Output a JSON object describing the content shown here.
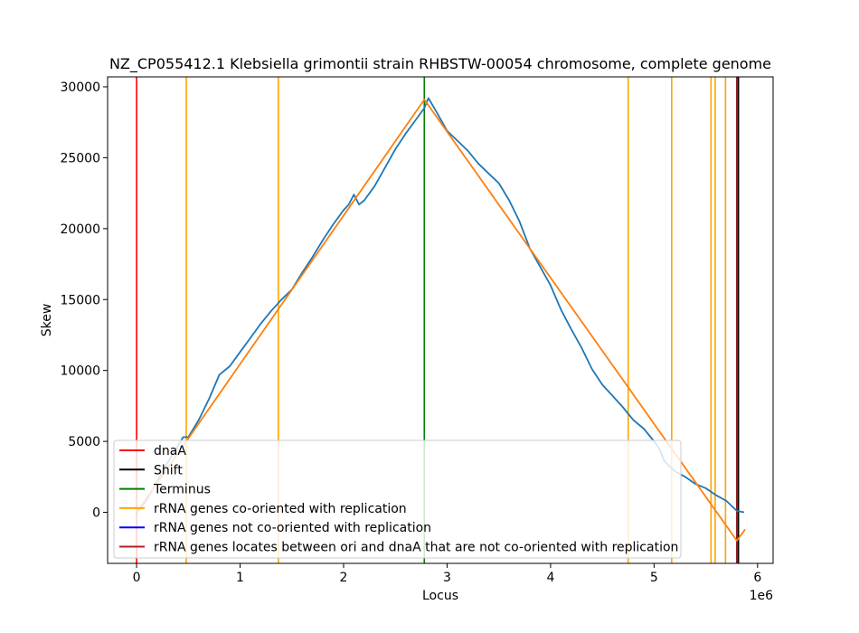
{
  "chart_data": {
    "type": "line",
    "title": "NZ_CP055412.1 Klebsiella grimontii strain RHBSTW-00054 chromosome, complete genome",
    "xlabel": "Locus",
    "ylabel": "Skew",
    "x_offset_label": "1e6",
    "xlim": [
      -0.28,
      6.15
    ],
    "ylim": [
      -3600,
      30700
    ],
    "xticks": [
      0,
      1,
      2,
      3,
      4,
      5,
      6
    ],
    "xtick_labels": [
      "0",
      "1",
      "2",
      "3",
      "4",
      "5",
      "6"
    ],
    "yticks": [
      0,
      5000,
      10000,
      15000,
      20000,
      25000,
      30000
    ],
    "ytick_labels": [
      "0",
      "5000",
      "10000",
      "15000",
      "20000",
      "25000",
      "30000"
    ],
    "legend_position": "lower-left",
    "series": [
      {
        "name": "",
        "color": "#1f77b4",
        "x": [
          0,
          0.1,
          0.2,
          0.3,
          0.4,
          0.45,
          0.5,
          0.6,
          0.7,
          0.8,
          0.9,
          1.0,
          1.1,
          1.2,
          1.3,
          1.4,
          1.5,
          1.6,
          1.7,
          1.8,
          1.9,
          2.0,
          2.05,
          2.1,
          2.15,
          2.2,
          2.3,
          2.4,
          2.5,
          2.6,
          2.7,
          2.78,
          2.82,
          2.9,
          3.0,
          3.1,
          3.2,
          3.3,
          3.4,
          3.5,
          3.6,
          3.7,
          3.8,
          3.9,
          4.0,
          4.1,
          4.2,
          4.3,
          4.4,
          4.5,
          4.6,
          4.7,
          4.8,
          4.9,
          5.0,
          5.05,
          5.1,
          5.2,
          5.3,
          5.4,
          5.5,
          5.6,
          5.7,
          5.8,
          5.87
        ],
        "y": [
          -100,
          900,
          2200,
          3500,
          4700,
          5300,
          5300,
          6500,
          8000,
          9700,
          10300,
          11300,
          12300,
          13300,
          14200,
          15000,
          15700,
          16900,
          18000,
          19200,
          20300,
          21300,
          21700,
          22400,
          21700,
          22000,
          23000,
          24300,
          25600,
          26700,
          27700,
          28500,
          29200,
          28200,
          26900,
          26200,
          25500,
          24600,
          23900,
          23200,
          22000,
          20500,
          18600,
          17300,
          16000,
          14300,
          12900,
          11600,
          10100,
          9000,
          8200,
          7400,
          6500,
          5900,
          5000,
          4500,
          3600,
          2900,
          2500,
          2000,
          1700,
          1200,
          800,
          100,
          0
        ]
      },
      {
        "name": "",
        "color": "#ff7f0e",
        "x": [
          0,
          0.48,
          2.78,
          5.8,
          5.88
        ],
        "y": [
          0,
          5000,
          29100,
          -2000,
          -1200
        ]
      }
    ],
    "vlines": [
      {
        "x": 0,
        "color": "#ff0000",
        "group": "dnaA"
      },
      {
        "x": 0.48,
        "color": "#ffa500",
        "group": "rRNA-co"
      },
      {
        "x": 1.37,
        "color": "#ffa500",
        "group": "rRNA-co"
      },
      {
        "x": 2.78,
        "color": "#008000",
        "group": "Terminus"
      },
      {
        "x": 4.75,
        "color": "#ffa500",
        "group": "rRNA-co"
      },
      {
        "x": 5.17,
        "color": "#ffa500",
        "group": "rRNA-co"
      },
      {
        "x": 5.55,
        "color": "#ffa500",
        "group": "rRNA-co"
      },
      {
        "x": 5.59,
        "color": "#ffa500",
        "group": "rRNA-co"
      },
      {
        "x": 5.69,
        "color": "#ffa500",
        "group": "rRNA-co"
      },
      {
        "x": 5.8,
        "color": "#800000",
        "group": "extra"
      },
      {
        "x": 5.815,
        "color": "#000000",
        "group": "Shift"
      }
    ],
    "legend": [
      {
        "label": "dnaA",
        "color": "#ff0000"
      },
      {
        "label": "Shift",
        "color": "#000000"
      },
      {
        "label": "Terminus",
        "color": "#008000"
      },
      {
        "label": "rRNA genes co-oriented with replication",
        "color": "#ffa500"
      },
      {
        "label": "rRNA genes not co-oriented with replication",
        "color": "#0000ff"
      },
      {
        "label": "rRNA genes locates between ori and dnaA that are not co-oriented with replication",
        "color": "#b22222"
      }
    ]
  }
}
